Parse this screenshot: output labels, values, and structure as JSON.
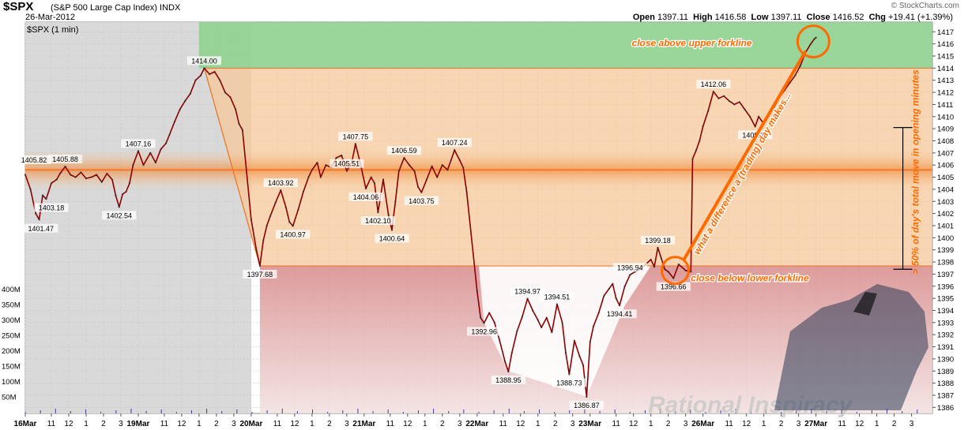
{
  "header": {
    "ticker": "$SPX",
    "description": "(S&P 500 Large Cap Index)",
    "exchange": "INDX",
    "date": "26-Mar-2012",
    "series_label": "$SPX (1 min)",
    "brand": "© StockCharts.com",
    "open_label": "Open",
    "open": "1397.11",
    "high_label": "High",
    "high": "1416.58",
    "low_label": "Low",
    "low": "1397.11",
    "close_label": "Close",
    "close": "1416.52",
    "chg_label": "Chg",
    "chg": "+19.41 (+1.39%)"
  },
  "colors": {
    "price_line": "#8b0000",
    "shade_gray": "#d9d9d9",
    "zone_green": "#8fd18f",
    "zone_orange": "#f5c89a",
    "zone_red": "#d88a8a",
    "median_line": "#f07020",
    "annotation": "#ff6a00"
  },
  "chart_data": {
    "type": "line",
    "title": "$SPX (1 min)",
    "ylim": [
      1385.5,
      1417.8
    ],
    "y_ticks": [
      1386,
      1387,
      1388,
      1389,
      1390,
      1391,
      1392,
      1393,
      1394,
      1395,
      1396,
      1397,
      1398,
      1399,
      1400,
      1401,
      1402,
      1403,
      1404,
      1405,
      1406,
      1407,
      1408,
      1409,
      1410,
      1411,
      1412,
      1413,
      1414,
      1415,
      1416,
      1417
    ],
    "volume_ticks": [
      "400M",
      "350M",
      "300M",
      "250M",
      "200M",
      "150M",
      "100M",
      "50M"
    ],
    "x_labels": [
      {
        "t": 0,
        "label": "16Mar"
      },
      {
        "t": 1.5,
        "label": "11"
      },
      {
        "t": 2.5,
        "label": "12"
      },
      {
        "t": 3.5,
        "label": "1"
      },
      {
        "t": 4.5,
        "label": "2"
      },
      {
        "t": 5.5,
        "label": "3"
      },
      {
        "t": 6.5,
        "label": "19Mar"
      },
      {
        "t": 8,
        "label": "11"
      },
      {
        "t": 9,
        "label": "12"
      },
      {
        "t": 10,
        "label": "1"
      },
      {
        "t": 11,
        "label": "2"
      },
      {
        "t": 12,
        "label": "3"
      },
      {
        "t": 13,
        "label": "20Mar"
      },
      {
        "t": 14.5,
        "label": "11"
      },
      {
        "t": 15.5,
        "label": "12"
      },
      {
        "t": 16.5,
        "label": "1"
      },
      {
        "t": 17.5,
        "label": "2"
      },
      {
        "t": 18.5,
        "label": "3"
      },
      {
        "t": 19.5,
        "label": "21Mar"
      },
      {
        "t": 21,
        "label": "11"
      },
      {
        "t": 22,
        "label": "12"
      },
      {
        "t": 23,
        "label": "1"
      },
      {
        "t": 24,
        "label": "2"
      },
      {
        "t": 25,
        "label": "3"
      },
      {
        "t": 26,
        "label": "22Mar"
      },
      {
        "t": 27.5,
        "label": "11"
      },
      {
        "t": 28.5,
        "label": "12"
      },
      {
        "t": 29.5,
        "label": "1"
      },
      {
        "t": 30.5,
        "label": "2"
      },
      {
        "t": 31.5,
        "label": "3"
      },
      {
        "t": 32.5,
        "label": "23Mar"
      },
      {
        "t": 34,
        "label": "11"
      },
      {
        "t": 35,
        "label": "12"
      },
      {
        "t": 36,
        "label": "1"
      },
      {
        "t": 37,
        "label": "2"
      },
      {
        "t": 38,
        "label": "3"
      },
      {
        "t": 39,
        "label": "26Mar"
      },
      {
        "t": 40.5,
        "label": "11"
      },
      {
        "t": 41.5,
        "label": "12"
      },
      {
        "t": 42.5,
        "label": "1"
      },
      {
        "t": 43.5,
        "label": "2"
      },
      {
        "t": 44.5,
        "label": "3"
      },
      {
        "t": 45.5,
        "label": "27Mar"
      },
      {
        "t": 47,
        "label": "11"
      },
      {
        "t": 48,
        "label": "12"
      },
      {
        "t": 49,
        "label": "1"
      },
      {
        "t": 50,
        "label": "2"
      },
      {
        "t": 51,
        "label": "3"
      }
    ],
    "x_range": [
      0,
      52.2
    ],
    "series": [
      {
        "values": [
          [
            0,
            1405.2
          ],
          [
            0.3,
            1404.0
          ],
          [
            0.6,
            1402.0
          ],
          [
            0.8,
            1401.5
          ],
          [
            1.0,
            1403.5
          ],
          [
            1.2,
            1403.2
          ],
          [
            1.5,
            1404.5
          ],
          [
            1.8,
            1404.8
          ],
          [
            2.0,
            1405.3
          ],
          [
            2.3,
            1405.88
          ],
          [
            2.6,
            1405.2
          ],
          [
            2.9,
            1405.0
          ],
          [
            3.2,
            1405.4
          ],
          [
            3.5,
            1404.9
          ],
          [
            3.8,
            1405.0
          ],
          [
            4.1,
            1405.2
          ],
          [
            4.4,
            1404.6
          ],
          [
            4.7,
            1405.3
          ],
          [
            5.0,
            1404.8
          ],
          [
            5.2,
            1403.5
          ],
          [
            5.4,
            1402.54
          ],
          [
            5.6,
            1403.6
          ],
          [
            5.8,
            1403.8
          ],
          [
            6.0,
            1404.5
          ],
          [
            6.2,
            1406.0
          ],
          [
            6.5,
            1407.16
          ],
          [
            6.8,
            1406.0
          ],
          [
            7.2,
            1407.0
          ],
          [
            7.5,
            1406.2
          ],
          [
            7.8,
            1407.3
          ],
          [
            8.1,
            1407.8
          ],
          [
            8.3,
            1408.5
          ],
          [
            8.6,
            1409.6
          ],
          [
            8.9,
            1410.6
          ],
          [
            9.2,
            1411.3
          ],
          [
            9.5,
            1411.9
          ],
          [
            9.8,
            1413.0
          ],
          [
            10.1,
            1413.4
          ],
          [
            10.3,
            1414.0
          ],
          [
            10.6,
            1413.5
          ],
          [
            10.9,
            1413.7
          ],
          [
            11.2,
            1413.0
          ],
          [
            11.5,
            1412.0
          ],
          [
            11.8,
            1411.6
          ],
          [
            12.1,
            1410.6
          ],
          [
            12.3,
            1409.4
          ],
          [
            12.5,
            1408.9
          ],
          [
            13.0,
            1401.5
          ],
          [
            13.3,
            1399.0
          ],
          [
            13.5,
            1397.68
          ],
          [
            13.7,
            1399.8
          ],
          [
            13.9,
            1401.0
          ],
          [
            14.1,
            1401.8
          ],
          [
            14.4,
            1402.9
          ],
          [
            14.7,
            1403.92
          ],
          [
            15.0,
            1402.5
          ],
          [
            15.2,
            1401.3
          ],
          [
            15.4,
            1400.97
          ],
          [
            15.7,
            1402.3
          ],
          [
            16.0,
            1403.8
          ],
          [
            16.3,
            1405.0
          ],
          [
            16.5,
            1405.6
          ],
          [
            16.8,
            1406.2
          ],
          [
            17.0,
            1405.0
          ],
          [
            17.3,
            1406.0
          ],
          [
            17.6,
            1405.8
          ],
          [
            17.9,
            1406.6
          ],
          [
            18.2,
            1406.8
          ],
          [
            18.5,
            1405.51
          ],
          [
            18.8,
            1406.3
          ],
          [
            19.0,
            1407.75
          ],
          [
            19.3,
            1406.0
          ],
          [
            19.6,
            1404.06
          ],
          [
            19.9,
            1405.0
          ],
          [
            20.1,
            1404.5
          ],
          [
            20.3,
            1402.1
          ],
          [
            20.6,
            1404.8
          ],
          [
            20.9,
            1401.9
          ],
          [
            21.1,
            1400.64
          ],
          [
            21.3,
            1403.0
          ],
          [
            21.5,
            1405.5
          ],
          [
            21.8,
            1406.59
          ],
          [
            22.1,
            1406.0
          ],
          [
            22.4,
            1405.5
          ],
          [
            22.6,
            1404.2
          ],
          [
            22.8,
            1403.75
          ],
          [
            23.1,
            1404.8
          ],
          [
            23.4,
            1405.9
          ],
          [
            23.7,
            1405.0
          ],
          [
            24.0,
            1406.0
          ],
          [
            24.3,
            1405.6
          ],
          [
            24.5,
            1406.4
          ],
          [
            24.7,
            1407.24
          ],
          [
            25.0,
            1406.4
          ],
          [
            25.2,
            1405.8
          ],
          [
            25.4,
            1403.8
          ],
          [
            26.0,
            1395.6
          ],
          [
            26.2,
            1393.4
          ],
          [
            26.4,
            1392.96
          ],
          [
            26.7,
            1393.8
          ],
          [
            27.0,
            1393.0
          ],
          [
            27.3,
            1391.5
          ],
          [
            27.6,
            1389.8
          ],
          [
            27.8,
            1388.95
          ],
          [
            28.0,
            1390.5
          ],
          [
            28.3,
            1392.3
          ],
          [
            28.6,
            1393.5
          ],
          [
            28.9,
            1394.97
          ],
          [
            29.2,
            1394.0
          ],
          [
            29.5,
            1393.2
          ],
          [
            29.7,
            1392.6
          ],
          [
            30.0,
            1393.4
          ],
          [
            30.3,
            1392.2
          ],
          [
            30.6,
            1394.51
          ],
          [
            30.9,
            1393.0
          ],
          [
            31.1,
            1390.5
          ],
          [
            31.3,
            1388.73
          ],
          [
            31.6,
            1391.5
          ],
          [
            31.9,
            1390.2
          ],
          [
            32.1,
            1389.5
          ],
          [
            32.3,
            1386.87
          ],
          [
            32.5,
            1391.4
          ],
          [
            32.7,
            1392.7
          ],
          [
            33.0,
            1393.8
          ],
          [
            33.3,
            1395.2
          ],
          [
            33.6,
            1395.8
          ],
          [
            33.8,
            1396.2
          ],
          [
            34.0,
            1395.0
          ],
          [
            34.2,
            1394.41
          ],
          [
            34.5,
            1396.0
          ],
          [
            34.8,
            1396.94
          ],
          [
            35.1,
            1397.2
          ],
          [
            35.4,
            1397.4
          ],
          [
            35.7,
            1397.8
          ],
          [
            36.0,
            1398.2
          ],
          [
            36.2,
            1397.6
          ],
          [
            36.4,
            1399.18
          ],
          [
            36.6,
            1398.3
          ],
          [
            36.8,
            1397.4
          ],
          [
            37.0,
            1397.2
          ],
          [
            37.3,
            1396.66
          ],
          [
            37.6,
            1397.8
          ],
          [
            38.0,
            1397.3
          ],
          [
            38.3,
            1397.2
          ],
          [
            38.4,
            1406.5
          ],
          [
            38.6,
            1407.2
          ],
          [
            38.8,
            1408.0
          ],
          [
            39.0,
            1409.2
          ],
          [
            39.3,
            1410.5
          ],
          [
            39.6,
            1412.06
          ],
          [
            39.9,
            1411.5
          ],
          [
            40.2,
            1411.7
          ],
          [
            40.5,
            1411.3
          ],
          [
            40.8,
            1411.0
          ],
          [
            41.1,
            1411.2
          ],
          [
            41.4,
            1410.6
          ],
          [
            41.7,
            1410.0
          ],
          [
            42.0,
            1409.18
          ],
          [
            42.2,
            1410.0
          ],
          [
            42.5,
            1409.4
          ],
          [
            42.8,
            1410.2
          ],
          [
            43.1,
            1410.8
          ],
          [
            43.4,
            1411.6
          ],
          [
            43.7,
            1412.2
          ],
          [
            44.0,
            1412.8
          ],
          [
            44.3,
            1413.4
          ],
          [
            44.6,
            1414.2
          ],
          [
            44.9,
            1415.3
          ],
          [
            45.2,
            1416.0
          ],
          [
            45.4,
            1416.4
          ],
          [
            45.5,
            1416.52
          ]
        ]
      }
    ],
    "annotations": [
      {
        "t": 0.5,
        "v": 1405.82,
        "text": "1405.82"
      },
      {
        "t": 0.9,
        "v": 1401.47,
        "text": "1401.47"
      },
      {
        "t": 1.5,
        "v": 1403.18,
        "text": "1403.18"
      },
      {
        "t": 2.3,
        "v": 1405.88,
        "text": "1405.88"
      },
      {
        "t": 5.4,
        "v": 1402.54,
        "text": "1402.54"
      },
      {
        "t": 6.5,
        "v": 1407.16,
        "text": "1407.16"
      },
      {
        "t": 10.3,
        "v": 1414.0,
        "text": "1414.00"
      },
      {
        "t": 13.5,
        "v": 1397.68,
        "text": "1397.68"
      },
      {
        "t": 14.7,
        "v": 1403.92,
        "text": "1403.92"
      },
      {
        "t": 15.4,
        "v": 1400.97,
        "text": "1400.97"
      },
      {
        "t": 19.0,
        "v": 1407.75,
        "text": "1407.75"
      },
      {
        "t": 18.5,
        "v": 1405.51,
        "text": "1405.51"
      },
      {
        "t": 19.6,
        "v": 1404.06,
        "text": "1404.06"
      },
      {
        "t": 20.3,
        "v": 1402.1,
        "text": "1402.10"
      },
      {
        "t": 21.1,
        "v": 1400.64,
        "text": "1400.64"
      },
      {
        "t": 21.8,
        "v": 1406.59,
        "text": "1406.59"
      },
      {
        "t": 22.8,
        "v": 1403.75,
        "text": "1403.75"
      },
      {
        "t": 24.7,
        "v": 1407.24,
        "text": "1407.24"
      },
      {
        "t": 26.4,
        "v": 1392.96,
        "text": "1392.96"
      },
      {
        "t": 27.8,
        "v": 1388.95,
        "text": "1388.95"
      },
      {
        "t": 28.9,
        "v": 1394.97,
        "text": "1394.97"
      },
      {
        "t": 30.6,
        "v": 1394.51,
        "text": "1394.51"
      },
      {
        "t": 31.3,
        "v": 1388.73,
        "text": "1388.73"
      },
      {
        "t": 32.3,
        "v": 1386.87,
        "text": "1386.87"
      },
      {
        "t": 34.2,
        "v": 1394.41,
        "text": "1394.41"
      },
      {
        "t": 34.8,
        "v": 1396.94,
        "text": "1396.94"
      },
      {
        "t": 36.4,
        "v": 1399.18,
        "text": "1399.18"
      },
      {
        "t": 37.3,
        "v": 1396.66,
        "text": "1396.66"
      },
      {
        "t": 39.6,
        "v": 1412.06,
        "text": "1412.06"
      },
      {
        "t": 42.0,
        "v": 1409.18,
        "text": "1409.18"
      }
    ],
    "forklines": {
      "upper": {
        "start": [
          10.3,
          1414.0
        ],
        "end": [
          52.2,
          1413.8
        ]
      },
      "median": {
        "start": [
          0,
          1405.6
        ],
        "end": [
          52.2,
          1405.5
        ]
      },
      "lower": {
        "start": [
          13.5,
          1397.68
        ],
        "end": [
          52.2,
          1397.7
        ]
      },
      "origin": [
        10.3,
        1414.0
      ]
    },
    "text_annotations": {
      "upper_break": "close above upper forkline",
      "lower_break": "close below lower forkline",
      "diagonal": "what a difference a (trading) day makes...",
      "vertical": "> 50% of day's total move in opening minutes"
    },
    "watermark": "Rational Inspiracy"
  }
}
